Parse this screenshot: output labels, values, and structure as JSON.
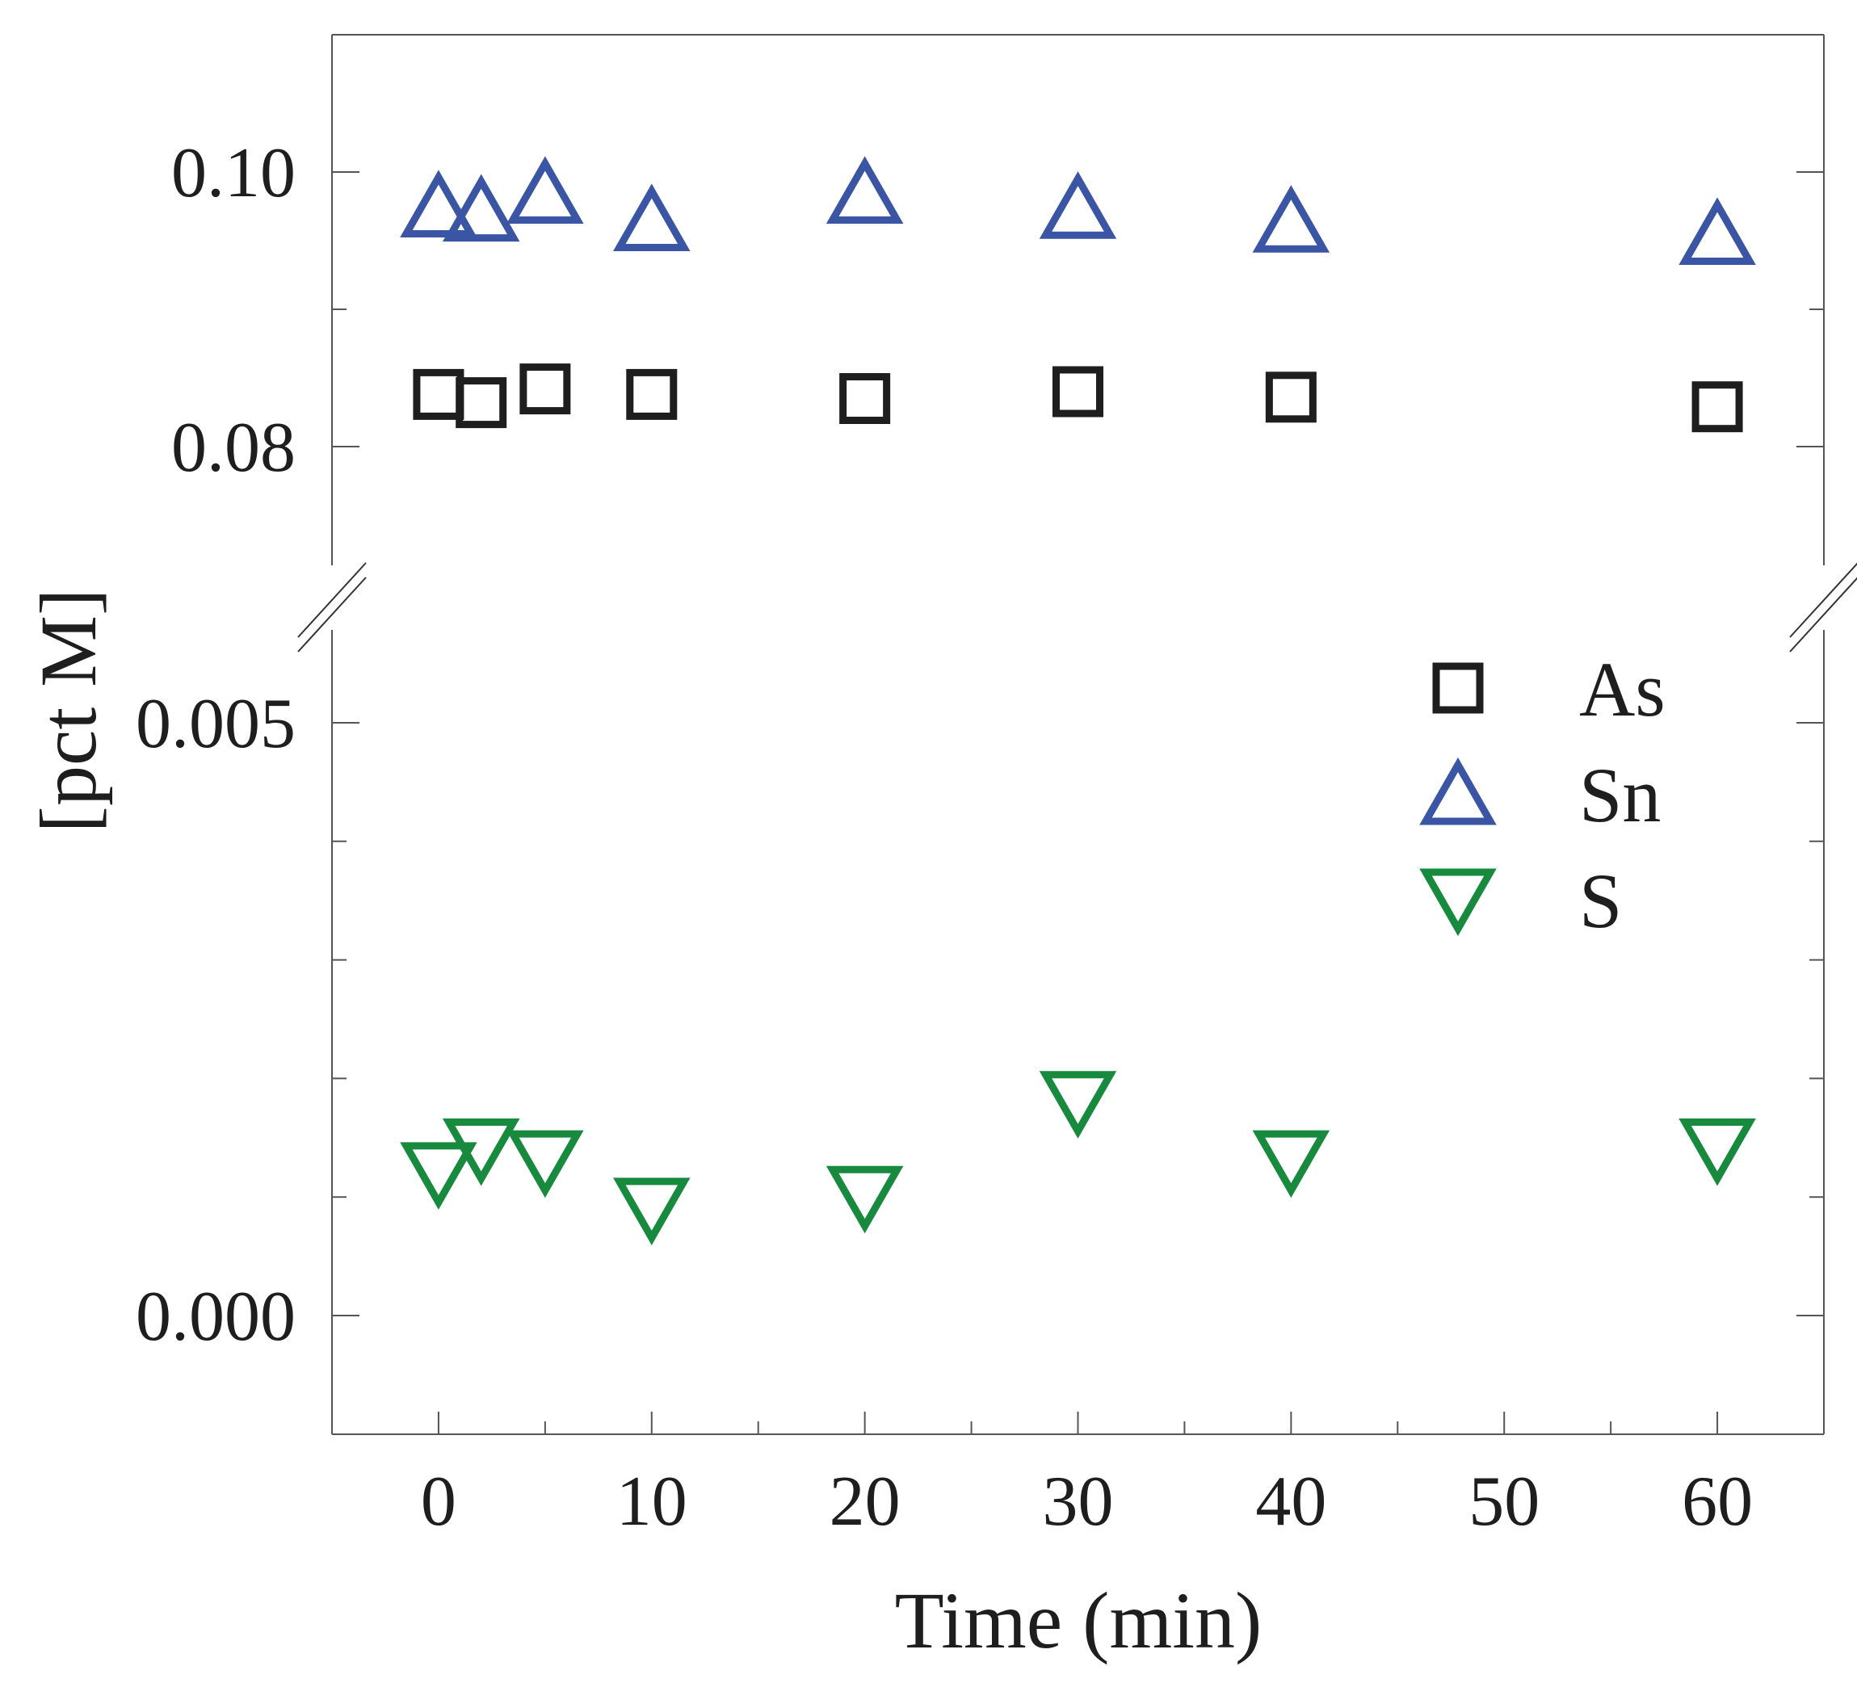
{
  "chart_data": {
    "type": "scatter",
    "title": "",
    "xlabel": "Time (min)",
    "ylabel": "[pct M]",
    "grid": false,
    "legend_position": "right-middle",
    "x_ticks": [
      0,
      10,
      20,
      30,
      40,
      50,
      60
    ],
    "x_tick_labels": [
      "0",
      "10",
      "20",
      "30",
      "40",
      "50",
      "60"
    ],
    "xlim": [
      -5,
      65
    ],
    "broken_y_axis": true,
    "y_segments": [
      {
        "name": "upper",
        "ylim": [
          0.07,
          0.11
        ],
        "major_ticks": [
          0.08,
          0.1
        ],
        "major_tick_labels": [
          "0.08",
          "0.10"
        ],
        "minor_ticks": [
          0.09
        ]
      },
      {
        "name": "lower",
        "ylim": [
          -0.001,
          0.006
        ],
        "major_ticks": [
          0.0,
          0.005
        ],
        "major_tick_labels": [
          "0.000",
          "0.005"
        ],
        "minor_ticks": [
          0.001,
          0.002,
          0.003,
          0.004
        ]
      }
    ],
    "series": [
      {
        "name": "As",
        "marker": "square",
        "color": "#1e1e1e",
        "segment": "upper",
        "x": [
          0,
          2,
          5,
          10,
          20,
          30,
          40,
          60
        ],
        "y": [
          0.0838,
          0.0832,
          0.0842,
          0.0838,
          0.0835,
          0.084,
          0.0836,
          0.0829
        ]
      },
      {
        "name": "Sn",
        "marker": "triangle-up",
        "color": "#3a55a4",
        "segment": "upper",
        "x": [
          0,
          2,
          5,
          10,
          20,
          30,
          40,
          60
        ],
        "y": [
          0.0975,
          0.0972,
          0.0985,
          0.0965,
          0.0985,
          0.0974,
          0.0964,
          0.0955
        ]
      },
      {
        "name": "S",
        "marker": "triangle-down",
        "color": "#178a3e",
        "segment": "lower",
        "x": [
          0,
          2,
          5,
          10,
          20,
          30,
          40,
          60
        ],
        "y": [
          0.0012,
          0.0014,
          0.0013,
          0.0009,
          0.001,
          0.0018,
          0.0013,
          0.0014
        ]
      }
    ]
  }
}
